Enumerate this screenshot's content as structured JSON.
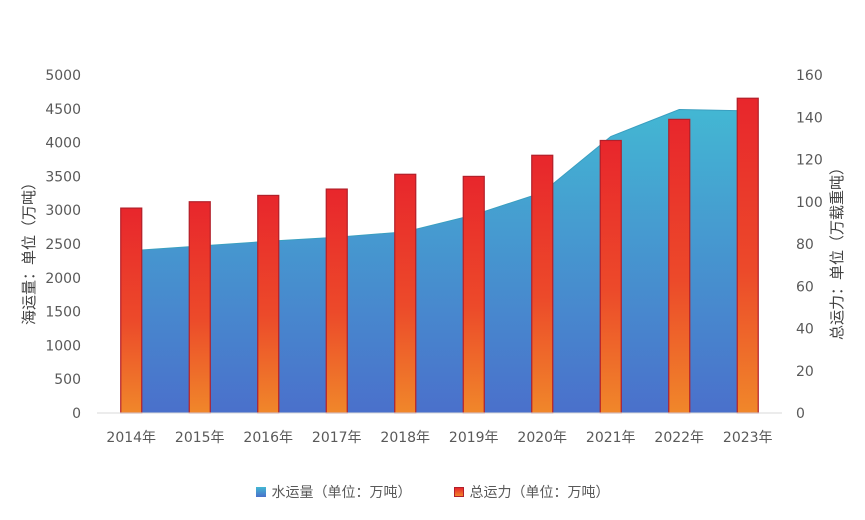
{
  "chart_data": {
    "type": "bar",
    "categories": [
      "2014年",
      "2015年",
      "2016年",
      "2017年",
      "2018年",
      "2019年",
      "2020年",
      "2021年",
      "2022年",
      "2023年"
    ],
    "series": [
      {
        "name": "水运量（单位：万吨）",
        "type": "area",
        "axis": "left",
        "values": [
          2400,
          2470,
          2540,
          2600,
          2680,
          2930,
          3260,
          4090,
          4490,
          4470
        ],
        "color_top": "#43b7d3",
        "color_bottom": "#4a70cb"
      },
      {
        "name": "总运力（单位：万吨）",
        "type": "bar",
        "axis": "right",
        "values": [
          97,
          100,
          103,
          106,
          113,
          112,
          122,
          129,
          139,
          149
        ],
        "color_top": "#e8262c",
        "color_bottom": "#f0852a",
        "border": "#b2202a"
      }
    ],
    "y_left": {
      "label": "海运量：单位（万吨）",
      "min": 0,
      "max": 5000,
      "ticks": [
        "0",
        "500",
        "1000",
        "1500",
        "2000",
        "2500",
        "3000",
        "3500",
        "4000",
        "4500",
        "5000"
      ]
    },
    "y_right": {
      "label": "总运力：单位（万载重吨）",
      "min": 0,
      "max": 160,
      "ticks": [
        "0",
        "20",
        "40",
        "60",
        "80",
        "100",
        "120",
        "140",
        "160"
      ]
    },
    "grid": false,
    "legend_position": "bottom"
  }
}
